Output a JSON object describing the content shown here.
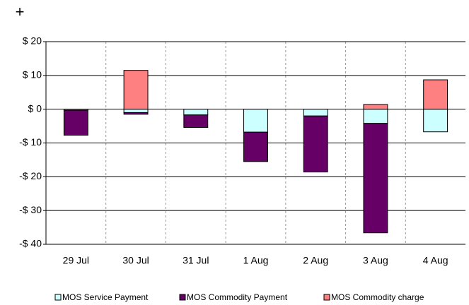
{
  "chart_data": {
    "type": "stacked-bar",
    "categories": [
      "29 Jul",
      "30 Jul",
      "31 Jul",
      "1 Aug",
      "2 Aug",
      "3 Aug",
      "4 Aug"
    ],
    "series": [
      {
        "name": "MOS Service Payment",
        "color": "#ccffff",
        "values": [
          -0.3,
          -1.0,
          -1.7,
          -6.8,
          -2.0,
          -4.2,
          -6.7
        ]
      },
      {
        "name": "MOS Commodity Payment",
        "color": "#660066",
        "values": [
          -7.4,
          -0.5,
          -3.7,
          -8.7,
          -16.6,
          -32.4,
          0
        ]
      },
      {
        "name": "MOS Commodity charge",
        "color": "#ff8080",
        "values": [
          0,
          11.5,
          0,
          0,
          0,
          1.4,
          8.7
        ]
      }
    ],
    "ylim": [
      -40,
      20
    ],
    "yticks": [
      {
        "value": 20,
        "label": "$ 20"
      },
      {
        "value": 10,
        "label": "$ 10"
      },
      {
        "value": 0,
        "label": "$ 0"
      },
      {
        "value": -10,
        "label": "-$ 10"
      },
      {
        "value": -20,
        "label": "-$ 20"
      },
      {
        "value": -30,
        "label": "-$ 30"
      },
      {
        "value": -40,
        "label": "-$ 40"
      }
    ],
    "grid": true,
    "legend": "bottom"
  }
}
